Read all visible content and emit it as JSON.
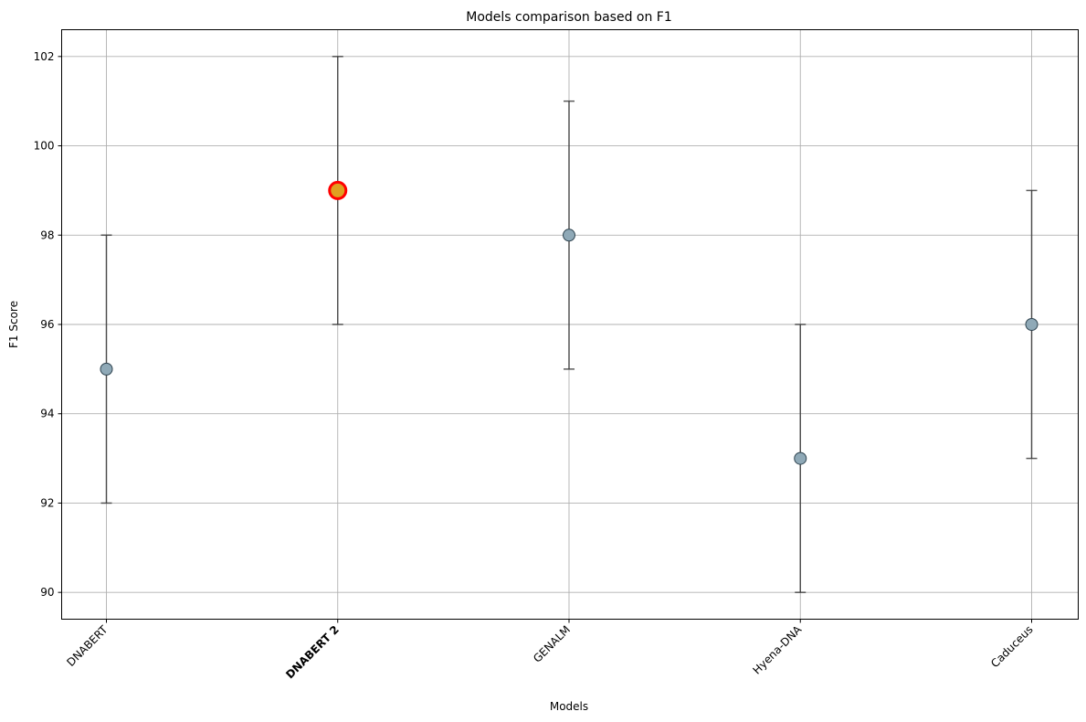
{
  "chart_data": {
    "type": "scatter",
    "title": "Models comparison based on F1",
    "xlabel": "Models",
    "ylabel": "F1 Score",
    "categories": [
      "DNABERT",
      "DNABERT 2",
      "GENALM",
      "Hyena-DNA",
      "Caduceus"
    ],
    "values": [
      95,
      99,
      98,
      93,
      96
    ],
    "error_low": [
      92,
      96,
      95,
      90,
      93
    ],
    "error_high": [
      98,
      102,
      101,
      96,
      99
    ],
    "highlight_category": "DNABERT 2",
    "y_ticks": [
      90,
      92,
      94,
      96,
      98,
      100,
      102
    ],
    "ylim": [
      89.4,
      102.6
    ],
    "grid": true,
    "x_tick_rotation": "45 degrees",
    "colors": {
      "marker_fill": "#8fa9b7",
      "marker_edge": "#2f4450",
      "highlight_fill": "#e0a020",
      "highlight_edge": "#ff0000",
      "error_bar": "#333333",
      "grid": "#b0b0b0"
    }
  }
}
